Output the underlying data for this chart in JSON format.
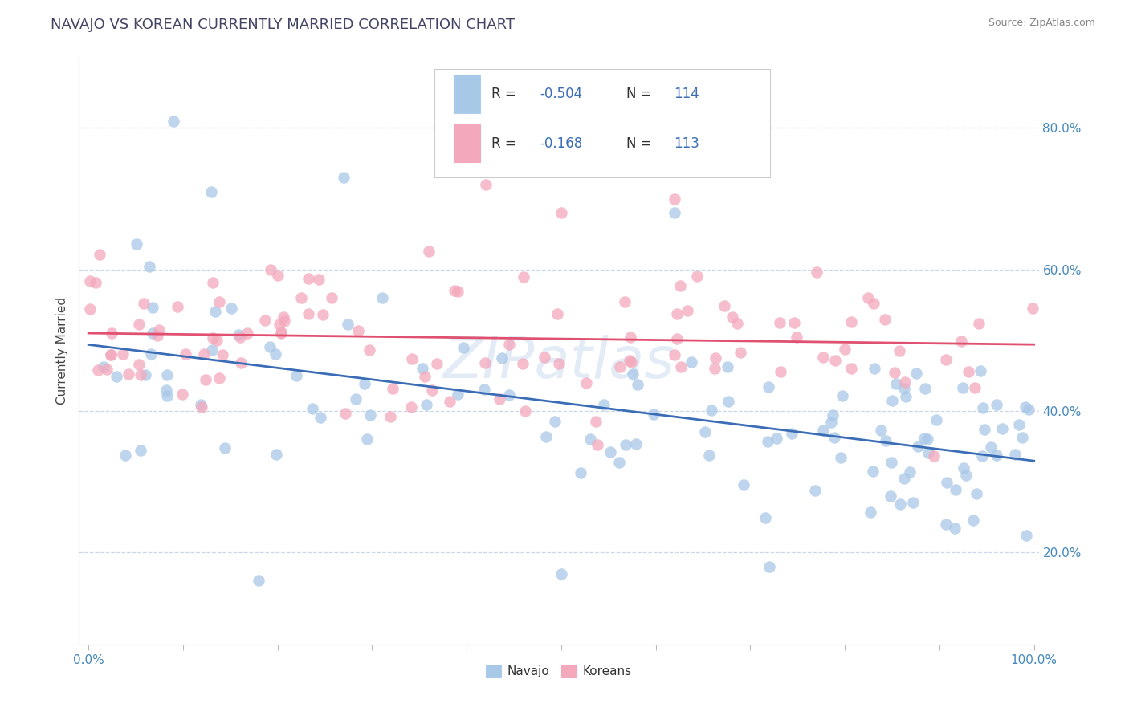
{
  "title": "NAVAJO VS KOREAN CURRENTLY MARRIED CORRELATION CHART",
  "source": "Source: ZipAtlas.com",
  "ylabel": "Currently Married",
  "right_ytick_labels": [
    "20.0%",
    "40.0%",
    "60.0%",
    "80.0%"
  ],
  "right_ytick_values": [
    0.2,
    0.4,
    0.6,
    0.8
  ],
  "navajo_color": "#a8c8e8",
  "korean_color": "#f4a8bc",
  "navajo_line_color": "#3a6db5",
  "korean_line_color": "#e05070",
  "navajo_R": -0.504,
  "navajo_N": 114,
  "korean_R": -0.168,
  "korean_N": 113,
  "background_color": "#ffffff",
  "grid_color": "#c8d8e8",
  "title_color": "#3a6db5",
  "legend_color": "#3a6db5",
  "watermark": "ZIPatlas",
  "seed_nav": 17,
  "seed_kor": 99,
  "xlim": [
    0.0,
    1.0
  ],
  "ylim": [
    0.07,
    0.9
  ],
  "nav_intercept": 0.48,
  "nav_slope": -0.15,
  "kor_intercept": 0.505,
  "kor_slope": -0.035
}
